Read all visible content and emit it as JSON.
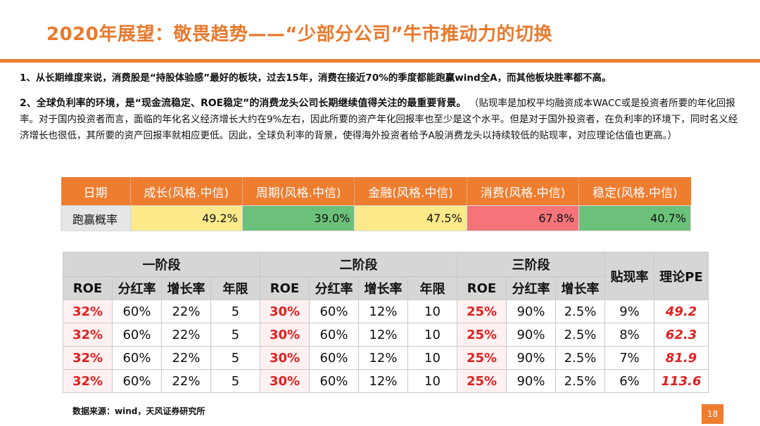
{
  "title": "2020年展望：敬畏趋势——“少部分公司”牛市推动力的切换",
  "paragraph1": "1、从长期维度来说，消费股是“持股体验感”最好的板块，过去15年，消费在接近70%的季度都能跑赢wind全A，而其他板块胜率都不高。",
  "paragraph2_lead": "2、全球负利率的环境，是“现金流稳定、ROE稳定”的消费龙头公司长期继续值得关注的最重要背景。",
  "paragraph2_note": "（贴现率是加权平均融资成本WACC或是投资者所要的年化回报率。对于国内投资者而言，面临的年化名义经济增长大约在9%左右，因此所要的资产年化回报率也至少是这个水平。但是对于国外投资者，在负利率的环境下，同时名义经济增长也很低，其所要的资产回报率就相应更低。因此，全球负利率的背景，使得海外投资者给予A股消费龙头以持续较低的贴现率，对应理论估值也更高。）",
  "win_table": {
    "header": [
      "日期",
      "成长(风格.中信)",
      "周期(风格.中信)",
      "金融(风格.中信)",
      "消费(风格.中信)",
      "稳定(风格.中信)"
    ],
    "row_label": "跑赢概率",
    "values": [
      "49.2%",
      "39.0%",
      "47.5%",
      "67.8%",
      "40.7%"
    ],
    "colors": [
      "#fbe98a",
      "#6cc17a",
      "#fbe98a",
      "#f4747a",
      "#6cc17a"
    ]
  },
  "pe_table": {
    "stages": [
      "一阶段",
      "二阶段",
      "三阶段"
    ],
    "discount_header": "贴现率",
    "pe_header": "理论PE",
    "stage1_cols": [
      "ROE",
      "分红率",
      "增长率",
      "年限"
    ],
    "stage2_cols": [
      "ROE",
      "分红率",
      "增长率",
      "年限"
    ],
    "stage3_cols": [
      "ROE",
      "分红率",
      "增长率"
    ],
    "rows": [
      [
        "32%",
        "60%",
        "22%",
        "5",
        "30%",
        "60%",
        "12%",
        "10",
        "25%",
        "90%",
        "2.5%",
        "9%",
        "49.2"
      ],
      [
        "32%",
        "60%",
        "22%",
        "5",
        "30%",
        "60%",
        "12%",
        "10",
        "25%",
        "90%",
        "2.5%",
        "8%",
        "62.3"
      ],
      [
        "32%",
        "60%",
        "22%",
        "5",
        "30%",
        "60%",
        "12%",
        "10",
        "25%",
        "90%",
        "2.5%",
        "7%",
        "81.9"
      ],
      [
        "32%",
        "60%",
        "22%",
        "5",
        "30%",
        "60%",
        "12%",
        "10",
        "25%",
        "90%",
        "2.5%",
        "6%",
        "113.6"
      ]
    ]
  },
  "source": "数据来源：wind，天风证券研究所",
  "page_number": "18"
}
